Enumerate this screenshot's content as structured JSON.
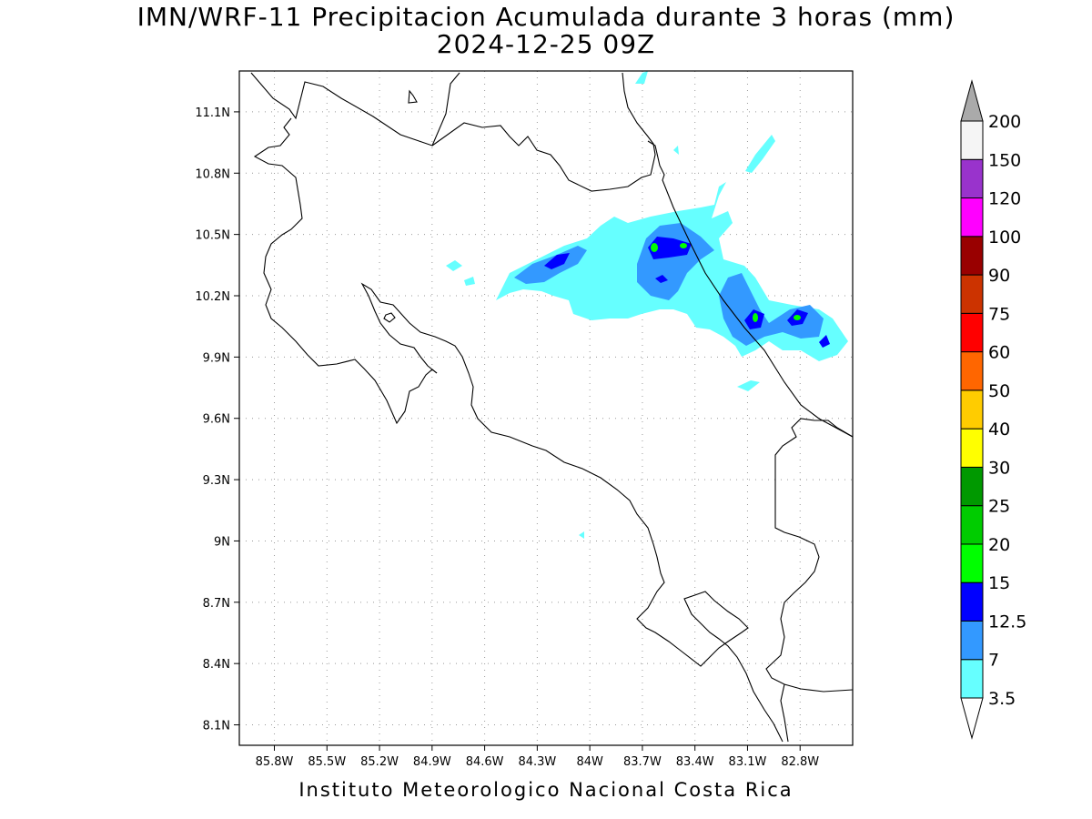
{
  "title_line1": "IMN/WRF-11 Precipitacion Acumulada durante 3 horas (mm)",
  "title_line2": "2024-12-25 09Z",
  "footer": "Instituto Meteorologico Nacional Costa Rica",
  "map": {
    "lon_range": [
      -86.0,
      -82.5
    ],
    "lat_range": [
      8.0,
      11.3
    ],
    "lon_ticks": [
      "85.8W",
      "85.5W",
      "85.2W",
      "84.9W",
      "84.6W",
      "84.3W",
      "84W",
      "83.7W",
      "83.4W",
      "83.1W",
      "82.8W"
    ],
    "lat_ticks": [
      "11.1N",
      "10.8N",
      "10.5N",
      "10.2N",
      "9.9N",
      "9.6N",
      "9.3N",
      "9N",
      "8.7N",
      "8.4N",
      "8.1N"
    ],
    "grid": "dotted"
  },
  "legend": {
    "levels": [
      "3.5",
      "7",
      "12.5",
      "15",
      "20",
      "25",
      "30",
      "40",
      "50",
      "60",
      "75",
      "90",
      "100",
      "120",
      "150",
      "200"
    ],
    "colors": [
      "#66ffff",
      "#3399ff",
      "#0000ff",
      "#00ff00",
      "#00cc00",
      "#009900",
      "#ffff00",
      "#ffcc00",
      "#ff6600",
      "#ff0000",
      "#cc3300",
      "#990000",
      "#ff00ff",
      "#9933cc",
      "#f5f5f5",
      "#aaaaaa"
    ]
  }
}
